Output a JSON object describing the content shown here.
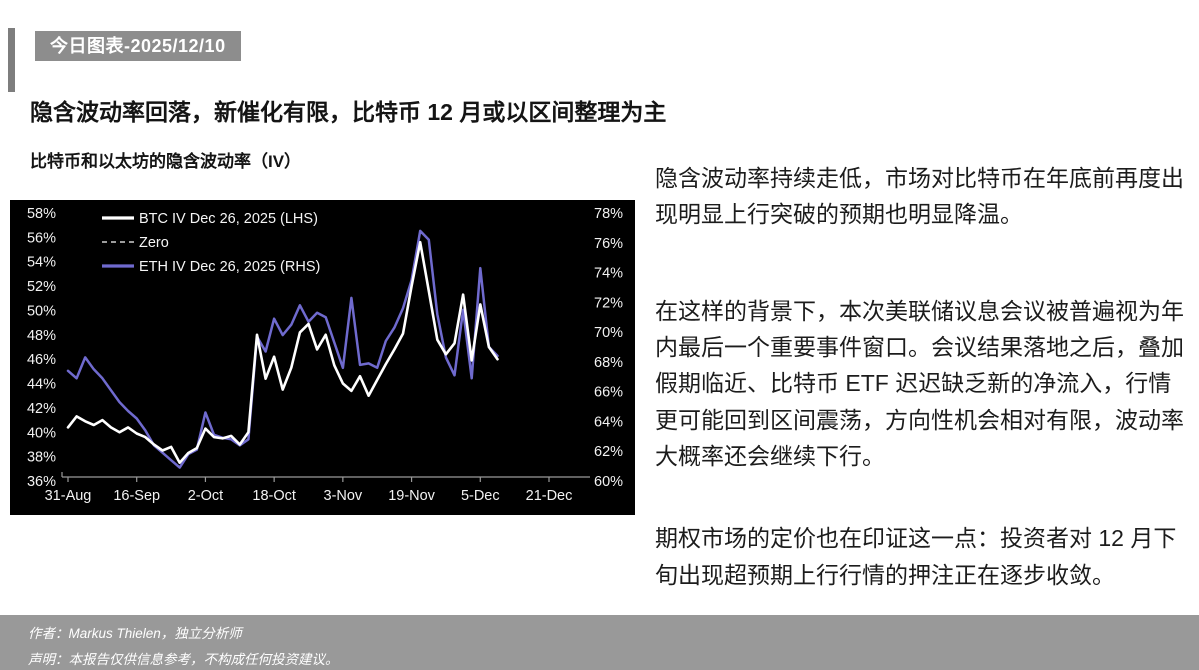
{
  "page": {
    "badge": "今日图表-2025/12/10",
    "title": "隐含波动率回落，新催化有限，比特币 12 月或以区间整理为主",
    "chart_subtitle": "比特币和以太坊的隐含波动率（IV）"
  },
  "paragraphs": {
    "p1": "隐含波动率持续走低，市场对比特币在年底前再度出现明显上行突破的预期也明显降温。",
    "p2": "在这样的背景下，本次美联储议息会议被普遍视为年内最后一个重要事件窗口。会议结果落地之后，叠加假期临近、比特币 ETF 迟迟缺乏新的净流入，行情更可能回到区间震荡，方向性机会相对有限，波动率大概率还会继续下行。",
    "p3": "期权市场的定价也在印证这一点：投资者对 12 月下旬出现超预期上行行情的押注正在逐步收敛。"
  },
  "footer": {
    "author": "作者：Markus Thielen，独立分析师",
    "disclaimer": "声明：本报告仅供信息参考，不构成任何投资建议。"
  },
  "colors": {
    "badge_bg": "#8d8d8d",
    "footer_bg": "#999999",
    "chart_bg": "#000000",
    "btc_line": "#ffffff",
    "eth_line": "#6f6ace",
    "zero_line": "#cfcfcf",
    "axis_text": "#f2f2f2",
    "axis_line": "#9a9a9a"
  },
  "chart_data": {
    "type": "line",
    "title": "比特币和以太坊的隐含波动率（IV）",
    "legend_position": "top-left",
    "grid": false,
    "legend": [
      {
        "name": "BTC IV Dec 26, 2025 (LHS)",
        "color": "#ffffff",
        "style": "solid"
      },
      {
        "name": "Zero",
        "color": "#cfcfcf",
        "style": "dashed"
      },
      {
        "name": "ETH IV Dec 26, 2025 (RHS)",
        "color": "#6f6ace",
        "style": "solid"
      }
    ],
    "left_axis": {
      "min": 36,
      "max": 58,
      "tick_step": 2,
      "unit": "%",
      "ticks": [
        "58%",
        "56%",
        "54%",
        "52%",
        "50%",
        "48%",
        "46%",
        "44%",
        "42%",
        "40%",
        "38%",
        "36%"
      ]
    },
    "right_axis": {
      "min": 60,
      "max": 78,
      "tick_step": 2,
      "unit": "%",
      "ticks": [
        "78%",
        "76%",
        "74%",
        "72%",
        "70%",
        "68%",
        "66%",
        "64%",
        "62%",
        "60%"
      ]
    },
    "x_ticks": [
      {
        "label": "31-Aug",
        "day": 0
      },
      {
        "label": "16-Sep",
        "day": 16
      },
      {
        "label": "2-Oct",
        "day": 32
      },
      {
        "label": "18-Oct",
        "day": 48
      },
      {
        "label": "3-Nov",
        "day": 64
      },
      {
        "label": "19-Nov",
        "day": 80
      },
      {
        "label": "5-Dec",
        "day": 96
      },
      {
        "label": "21-Dec",
        "day": 112
      }
    ],
    "dates": [
      "31-Aug",
      "2-Sep",
      "4-Sep",
      "6-Sep",
      "8-Sep",
      "10-Sep",
      "12-Sep",
      "14-Sep",
      "16-Sep",
      "18-Sep",
      "20-Sep",
      "22-Sep",
      "24-Sep",
      "26-Sep",
      "28-Sep",
      "30-Sep",
      "2-Oct",
      "4-Oct",
      "6-Oct",
      "8-Oct",
      "10-Oct",
      "12-Oct",
      "14-Oct",
      "16-Oct",
      "18-Oct",
      "20-Oct",
      "22-Oct",
      "24-Oct",
      "26-Oct",
      "28-Oct",
      "30-Oct",
      "1-Nov",
      "3-Nov",
      "5-Nov",
      "7-Nov",
      "9-Nov",
      "11-Nov",
      "13-Nov",
      "15-Nov",
      "17-Nov",
      "19-Nov",
      "21-Nov",
      "23-Nov",
      "25-Nov",
      "27-Nov",
      "29-Nov",
      "1-Dec",
      "3-Dec",
      "5-Dec",
      "7-Dec",
      "9-Dec"
    ],
    "days": [
      0,
      2,
      4,
      6,
      8,
      10,
      12,
      14,
      16,
      18,
      20,
      22,
      24,
      26,
      28,
      30,
      32,
      34,
      36,
      38,
      40,
      42,
      44,
      46,
      48,
      50,
      52,
      54,
      56,
      58,
      60,
      62,
      64,
      66,
      68,
      70,
      72,
      74,
      76,
      78,
      80,
      82,
      84,
      86,
      88,
      90,
      92,
      94,
      96,
      98,
      100
    ],
    "series": [
      {
        "name": "ETH IV Dec 26, 2025 (RHS)",
        "axis": "right",
        "color": "#6f6ace",
        "values": [
          67.4,
          66.9,
          68.3,
          67.5,
          66.9,
          66.1,
          65.3,
          64.7,
          64.2,
          63.4,
          62.4,
          61.9,
          61.4,
          60.9,
          61.8,
          62.1,
          64.6,
          63.1,
          62.9,
          62.8,
          62.4,
          62.8,
          69.7,
          68.7,
          70.9,
          69.8,
          70.5,
          71.8,
          70.7,
          71.3,
          71.0,
          69.3,
          67.6,
          72.3,
          67.8,
          67.9,
          67.6,
          69.4,
          70.3,
          71.6,
          73.5,
          76.8,
          76.2,
          71.2,
          68.3,
          67.1,
          71.5,
          66.9,
          74.3,
          69.0,
          68.4
        ]
      },
      {
        "name": "BTC IV Dec 26, 2025 (LHS)",
        "axis": "left",
        "color": "#ffffff",
        "values": [
          40.4,
          41.3,
          40.9,
          40.6,
          41.0,
          40.4,
          40.0,
          40.4,
          39.9,
          39.6,
          39.0,
          38.5,
          38.8,
          37.5,
          38.3,
          38.7,
          40.3,
          39.6,
          39.5,
          39.7,
          39.0,
          40.0,
          48.0,
          44.4,
          46.2,
          43.5,
          45.3,
          48.2,
          48.9,
          46.8,
          48.0,
          45.5,
          44.0,
          43.4,
          44.6,
          43.0,
          44.3,
          45.6,
          46.8,
          48.1,
          52.0,
          55.6,
          51.6,
          47.6,
          46.4,
          47.3,
          51.3,
          45.9,
          50.5,
          47.0,
          46.0
        ]
      }
    ]
  }
}
